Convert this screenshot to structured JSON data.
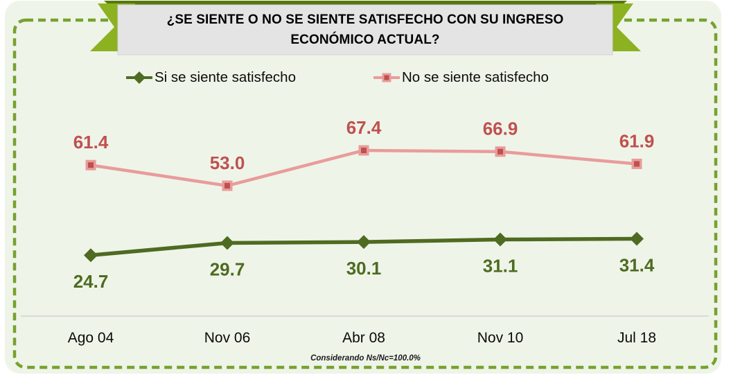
{
  "theme": {
    "page_bg": "#FFFFFF",
    "panel_bg": "#EFF4E9",
    "dashed_border": "#76A22F",
    "ribbon_green": "#8CB222",
    "ribbon_fold": "#56780E",
    "banner_bg": "#E4E4E4",
    "banner_border": "#CFCFCF",
    "axis_line": "#DADADA",
    "text": "#000000"
  },
  "chart_data": {
    "type": "line",
    "title": "¿SE SIENTE O NO SE SIENTE SATISFECHO CON SU INGRESO ECONÓMICO ACTUAL?",
    "categories": [
      "Ago 04",
      "Nov 06",
      "Abr 08",
      "Nov 10",
      "Jul 18"
    ],
    "series": [
      {
        "name": "Si se siente satisfecho",
        "values": [
          24.7,
          29.7,
          30.1,
          31.1,
          31.4
        ],
        "line_color": "#4E6B21",
        "marker": "diamond",
        "marker_color": "#4E6B21",
        "label_color": "#4E6B21",
        "label_position": "below"
      },
      {
        "name": "No se siente satisfecho",
        "values": [
          61.4,
          53.0,
          67.4,
          66.9,
          61.9
        ],
        "line_color": "#E89C9B",
        "marker": "square",
        "marker_color": "#C0504D",
        "marker_outline": "#E89C9B",
        "label_color": "#C0504D",
        "label_position": "above"
      }
    ],
    "value_format": "one_decimal",
    "data_labels": true,
    "grid": false,
    "y_axis": {
      "visible": false,
      "ylim": [
        0,
        100
      ]
    },
    "legend_position": "top",
    "footnote": "Considerando Ns/Nc=100.0%"
  }
}
